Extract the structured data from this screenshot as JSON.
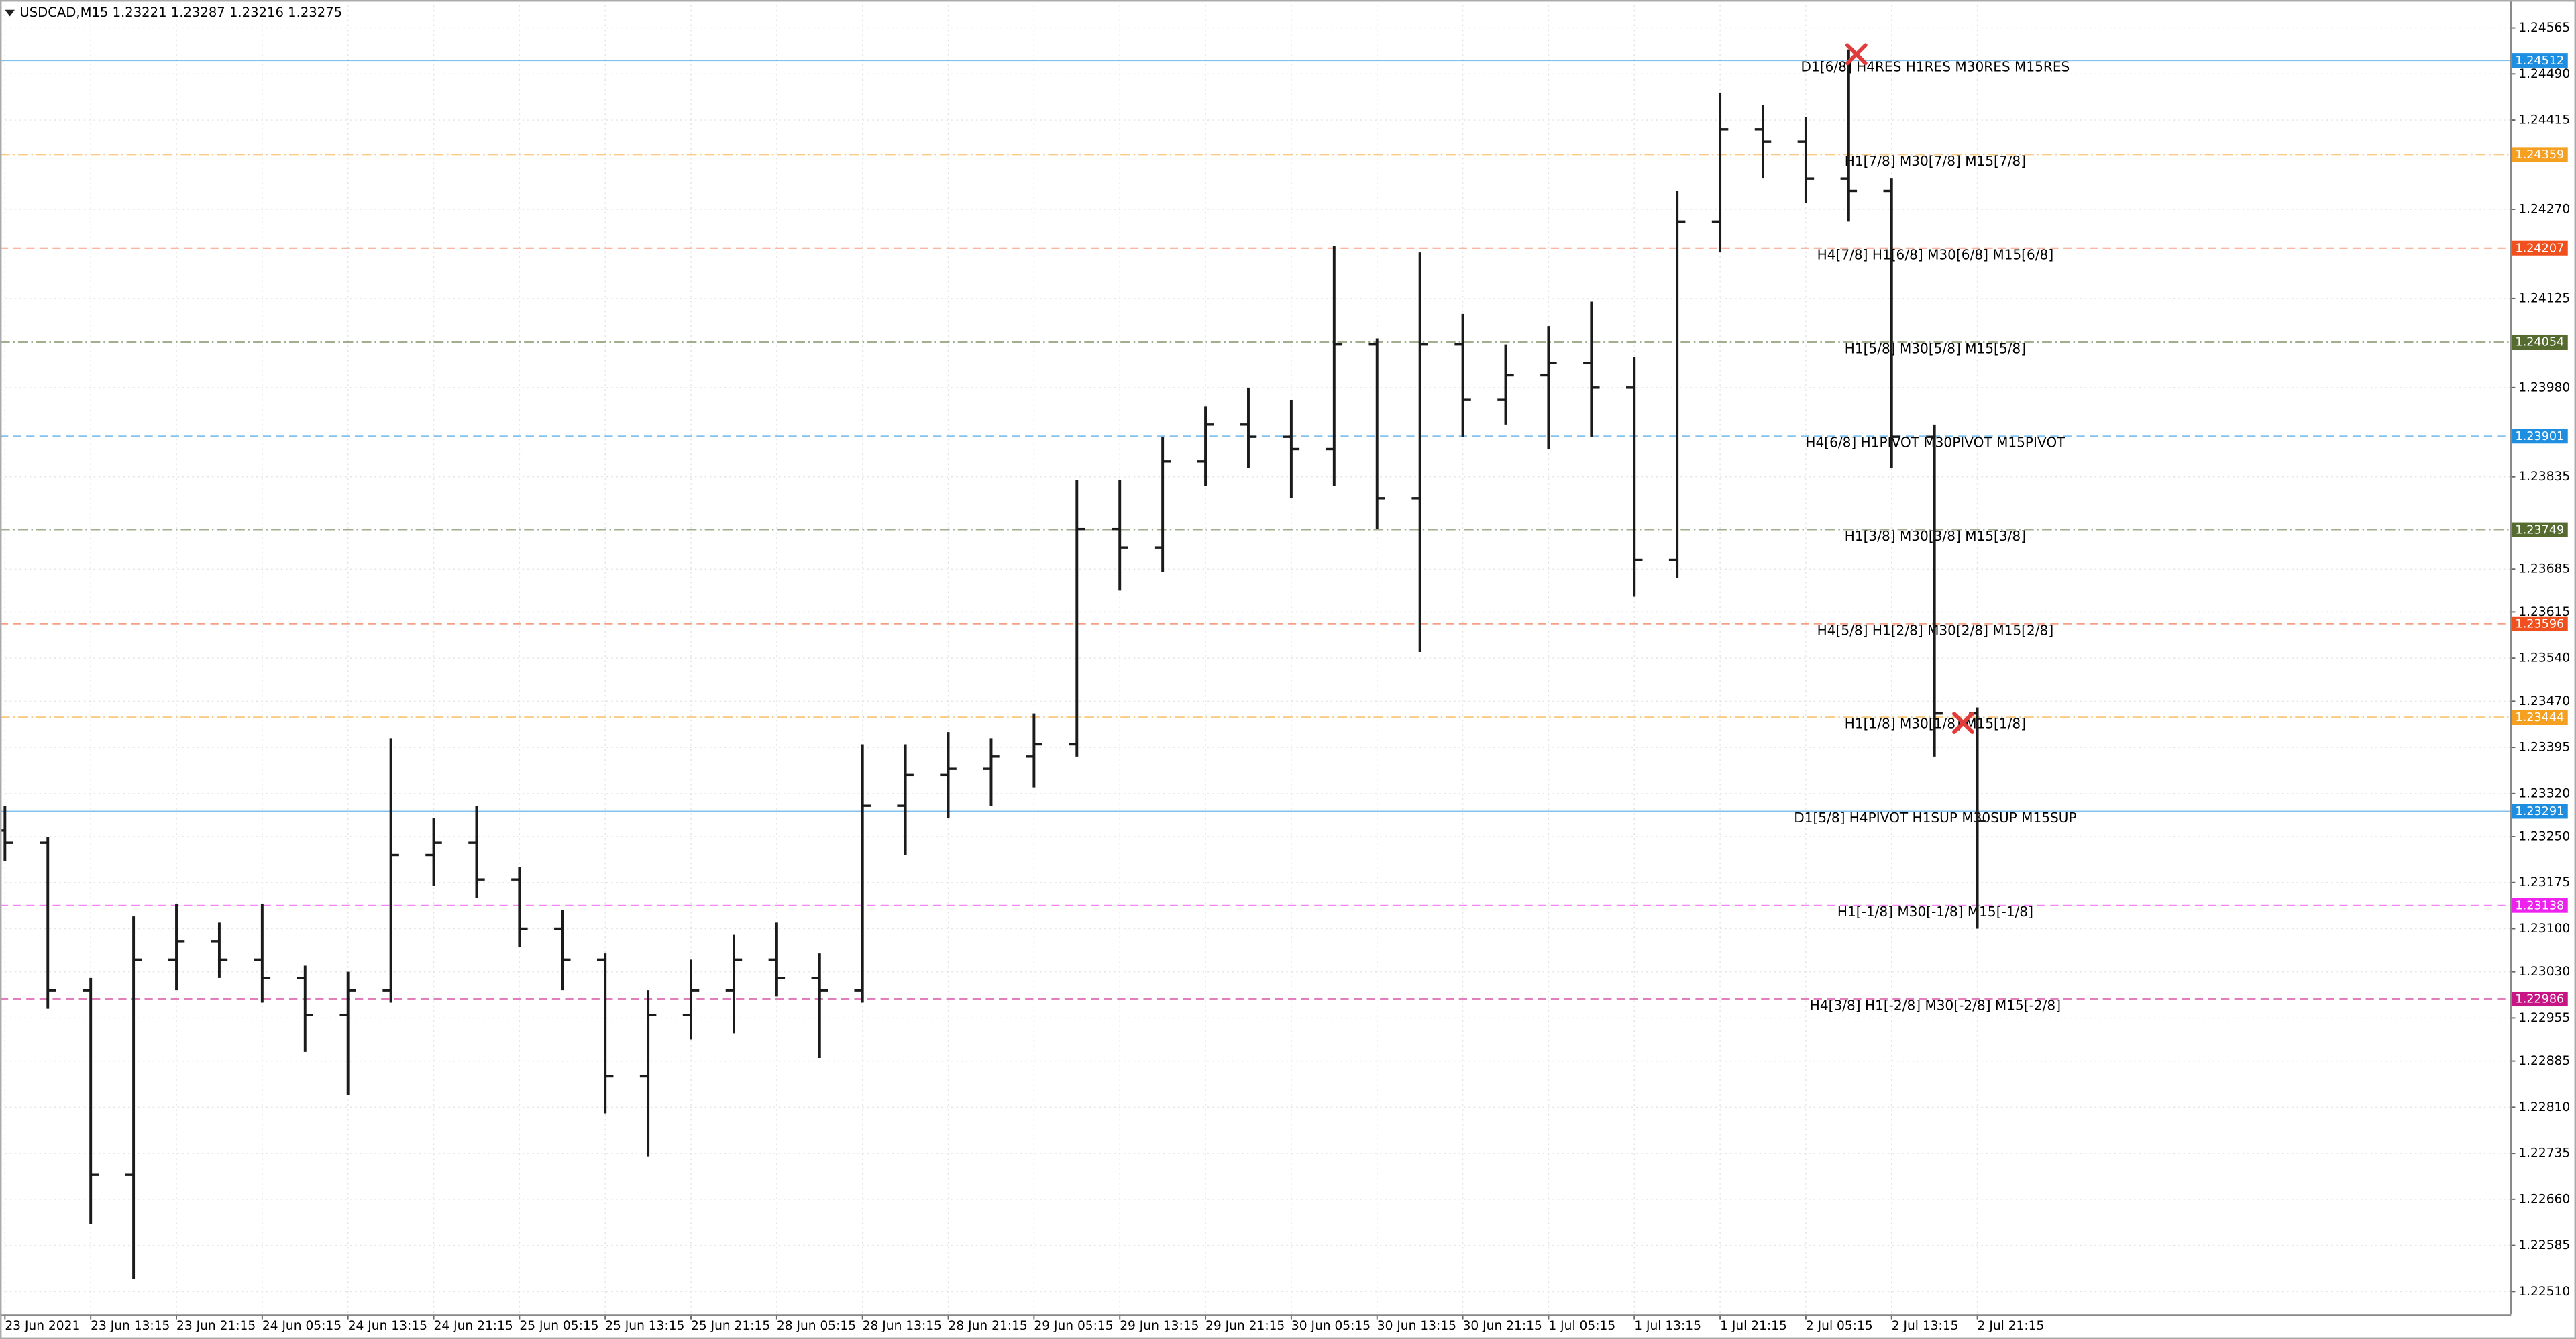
{
  "chart_data": {
    "type": "candlestick",
    "title": "USDCAD,M15  1.23221 1.23287 1.23216 1.23275",
    "categories": [
      "23 Jun 2021",
      null,
      "23 Jun 13:15",
      null,
      "23 Jun 21:15",
      null,
      "24 Jun 05:15",
      null,
      "24 Jun 13:15",
      null,
      "24 Jun 21:15",
      null,
      "25 Jun 05:15",
      null,
      "25 Jun 13:15",
      null,
      "25 Jun 21:15",
      null,
      "28 Jun 05:15",
      null,
      "28 Jun 13:15",
      null,
      "28 Jun 21:15",
      null,
      "29 Jun 05:15",
      null,
      "29 Jun 13:15",
      null,
      "29 Jun 21:15",
      null,
      "30 Jun 05:15",
      null,
      "30 Jun 13:15",
      null,
      "30 Jun 21:15",
      null,
      "1 Jul 05:15",
      null,
      "1 Jul 13:15",
      null,
      "1 Jul 21:15",
      null,
      "2 Jul 05:15",
      null,
      "2 Jul 13:15",
      null,
      "2 Jul 21:15"
    ],
    "open": [
      1.2326,
      1.2324,
      1.23,
      1.227,
      1.2305,
      1.2308,
      1.2305,
      1.2302,
      1.2296,
      1.23,
      1.2322,
      1.2324,
      1.2318,
      1.231,
      1.2305,
      1.2286,
      1.2296,
      1.23,
      1.2305,
      1.2302,
      1.23,
      1.233,
      1.2335,
      1.2336,
      1.2338,
      1.234,
      1.2375,
      1.2372,
      1.2386,
      1.2392,
      1.239,
      1.2388,
      1.2405,
      1.238,
      1.2405,
      1.2396,
      1.24,
      1.2402,
      1.2398,
      1.237,
      1.2425,
      1.244,
      1.2438,
      1.2432,
      1.243,
      1.239,
      1.2345
    ],
    "high": [
      1.233,
      1.2325,
      1.2302,
      1.2312,
      1.2314,
      1.2311,
      1.2314,
      1.2304,
      1.2303,
      1.2341,
      1.2328,
      1.233,
      1.232,
      1.2313,
      1.2306,
      1.23,
      1.2305,
      1.2309,
      1.2311,
      1.2306,
      1.234,
      1.234,
      1.2342,
      1.2341,
      1.2345,
      1.2383,
      1.2383,
      1.239,
      1.2395,
      1.2398,
      1.2396,
      1.2421,
      1.2406,
      1.242,
      1.241,
      1.2405,
      1.2408,
      1.2412,
      1.2403,
      1.243,
      1.2446,
      1.2444,
      1.2442,
      1.2453,
      1.2432,
      1.2392,
      1.2346
    ],
    "low": [
      1.2321,
      1.2297,
      1.2262,
      1.2253,
      1.23,
      1.2302,
      1.2298,
      1.229,
      1.2283,
      1.2298,
      1.2317,
      1.2315,
      1.2307,
      1.23,
      1.228,
      1.2273,
      1.2292,
      1.2293,
      1.2299,
      1.2289,
      1.2298,
      1.2322,
      1.2328,
      1.233,
      1.2333,
      1.2338,
      1.2365,
      1.2368,
      1.2382,
      1.2385,
      1.238,
      1.2382,
      1.2375,
      1.2355,
      1.239,
      1.2392,
      1.2388,
      1.239,
      1.2364,
      1.2367,
      1.242,
      1.2432,
      1.2428,
      1.2425,
      1.2385,
      1.2338,
      1.231
    ],
    "close": [
      1.2324,
      1.23,
      1.227,
      1.2305,
      1.2308,
      1.2305,
      1.2302,
      1.2296,
      1.23,
      1.2322,
      1.2324,
      1.2318,
      1.231,
      1.2305,
      1.2286,
      1.2296,
      1.23,
      1.2305,
      1.2302,
      1.23,
      1.233,
      1.2335,
      1.2336,
      1.2338,
      1.234,
      1.2375,
      1.2372,
      1.2386,
      1.2392,
      1.239,
      1.2388,
      1.2405,
      1.238,
      1.2405,
      1.2396,
      1.24,
      1.2402,
      1.2398,
      1.237,
      1.2425,
      1.244,
      1.2438,
      1.2432,
      1.243,
      1.239,
      1.2345,
      1.23275
    ],
    "color": "#1a1a1a",
    "ylim": [
      1.22473,
      1.24605
    ],
    "yticks": [
      1.24565,
      {
        "value": 1.2449,
        "label": "1.24490"
      },
      1.24415,
      {
        "value": 1.2427,
        "label": "1.24270"
      },
      1.24125,
      {
        "value": 1.2398,
        "label": "1.23980"
      },
      1.23835,
      1.23685,
      1.23615,
      {
        "value": 1.2354,
        "label": "1.23540"
      },
      {
        "value": 1.2347,
        "label": "1.23470"
      },
      1.23395,
      {
        "value": 1.2332,
        "label": "1.23320"
      },
      {
        "value": 1.2325,
        "label": "1.23250"
      },
      1.23175,
      {
        "value": 1.231,
        "label": "1.23100"
      },
      {
        "value": 1.2303,
        "label": "1.23030"
      },
      1.22955,
      1.22885,
      {
        "value": 1.2281,
        "label": "1.22810"
      },
      1.22735,
      {
        "value": 1.2266,
        "label": "1.22660"
      },
      1.22585,
      {
        "value": 1.2251,
        "label": "1.22510"
      }
    ],
    "grid": true,
    "levels": [
      {
        "value": 1.24512,
        "label": "D1[6/8] H4RES H1RES M30RES M15RES",
        "color": "#1e8fe0",
        "style": "solid"
      },
      {
        "value": 1.24359,
        "label": "H1[7/8] M30[7/8] M15[7/8]",
        "color": "#f5a020",
        "style": "dashdot"
      },
      {
        "value": 1.24207,
        "label": "H4[7/8] H1[6/8] M30[6/8] M15[6/8]",
        "color": "#f0501e",
        "style": "dash"
      },
      {
        "value": 1.24054,
        "label": "H1[5/8] M30[5/8] M15[5/8]",
        "color": "#556b2f",
        "style": "dashdot"
      },
      {
        "value": 1.23901,
        "label": "H4[6/8] H1PIVOT M30PIVOT M15PIVOT",
        "color": "#1e8fe0",
        "style": "dash"
      },
      {
        "value": 1.23749,
        "label": "H1[3/8] M30[3/8] M15[3/8]",
        "color": "#556b2f",
        "style": "dashdot"
      },
      {
        "value": 1.23596,
        "label": "H4[5/8] H1[2/8] M30[2/8] M15[2/8]",
        "color": "#f0501e",
        "style": "dash"
      },
      {
        "value": 1.23444,
        "label": "H1[1/8] M30[1/8] M15[1/8]",
        "color": "#f5a020",
        "style": "dashdot"
      },
      {
        "value": 1.23291,
        "label": "D1[5/8] H4PIVOT H1SUP M30SUP M15SUP",
        "color": "#1e8fe0",
        "style": "solid"
      },
      {
        "value": 1.23138,
        "label": "H1[-1/8] M30[-1/8] M15[-1/8]",
        "color": "#ee22ee",
        "style": "dash"
      },
      {
        "value": 1.22986,
        "label": "H4[3/8] H1[-2/8] M30[-2/8] M15[-2/8]",
        "color": "#c71585",
        "style": "dash"
      }
    ]
  }
}
